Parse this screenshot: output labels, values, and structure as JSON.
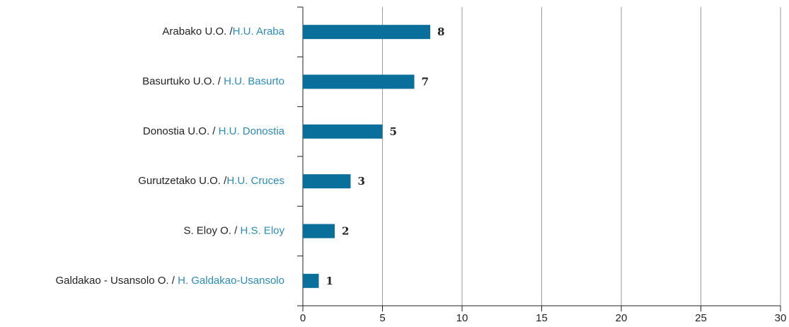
{
  "chart_data": {
    "type": "bar",
    "orientation": "horizontal",
    "categories": [
      [
        "Arabako U.O. /",
        "H.U. Araba"
      ],
      [
        "Basurtuko U.O. / ",
        "H.U. Basurto"
      ],
      [
        "Donostia U.O. / ",
        "H.U. Donostia"
      ],
      [
        "Gurutzetako U.O. /",
        "H.U. Cruces"
      ],
      [
        "S. Eloy O. / ",
        "H.S. Eloy"
      ],
      [
        "Galdakao - Usansolo O. / ",
        "H. Galdakao-Usansolo"
      ]
    ],
    "values": [
      8,
      7,
      5,
      3,
      2,
      1
    ],
    "color": "#0b6f9c",
    "label_colors": [
      "#222222",
      "#2a8bb8"
    ],
    "xlim": [
      0,
      30
    ],
    "xticks": [
      0,
      5,
      10,
      15,
      20,
      25,
      30
    ],
    "grid": true
  }
}
